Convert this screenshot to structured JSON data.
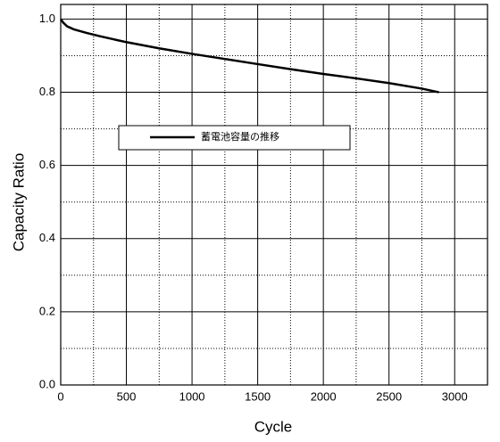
{
  "chart_data": {
    "type": "line",
    "x_label": "Cycle",
    "y_label": "Capacity Ratio",
    "x": [
      0,
      20,
      50,
      100,
      200,
      300,
      500,
      750,
      1000,
      1250,
      1500,
      1750,
      2000,
      2250,
      2500,
      2750,
      2880
    ],
    "series": [
      {
        "name": "蓄電池容量の推移",
        "color": "#000000",
        "values": [
          1.0,
          0.99,
          0.98,
          0.972,
          0.962,
          0.953,
          0.937,
          0.92,
          0.905,
          0.891,
          0.877,
          0.863,
          0.85,
          0.838,
          0.825,
          0.81,
          0.8
        ]
      }
    ],
    "xlim": [
      0,
      3250
    ],
    "ylim": [
      0,
      1.04
    ],
    "xticks": [
      0,
      500,
      1000,
      1500,
      2000,
      2500,
      3000
    ],
    "yticks": [
      {
        "value": 0,
        "label": "0.0"
      },
      {
        "value": 0.2,
        "label": "0.2"
      },
      {
        "value": 0.4,
        "label": "0.4"
      },
      {
        "value": 0.6,
        "label": "0.6"
      },
      {
        "value": 0.8,
        "label": "0.8"
      },
      {
        "value": 1,
        "label": "1.0"
      }
    ],
    "x_minor_ticks": [
      250,
      750,
      1250,
      1750,
      2250,
      2750,
      3250
    ],
    "y_minor_ticks": [
      0.1,
      0.3,
      0.5,
      0.7,
      0.9
    ],
    "grid": true,
    "legend": "upper-left"
  }
}
